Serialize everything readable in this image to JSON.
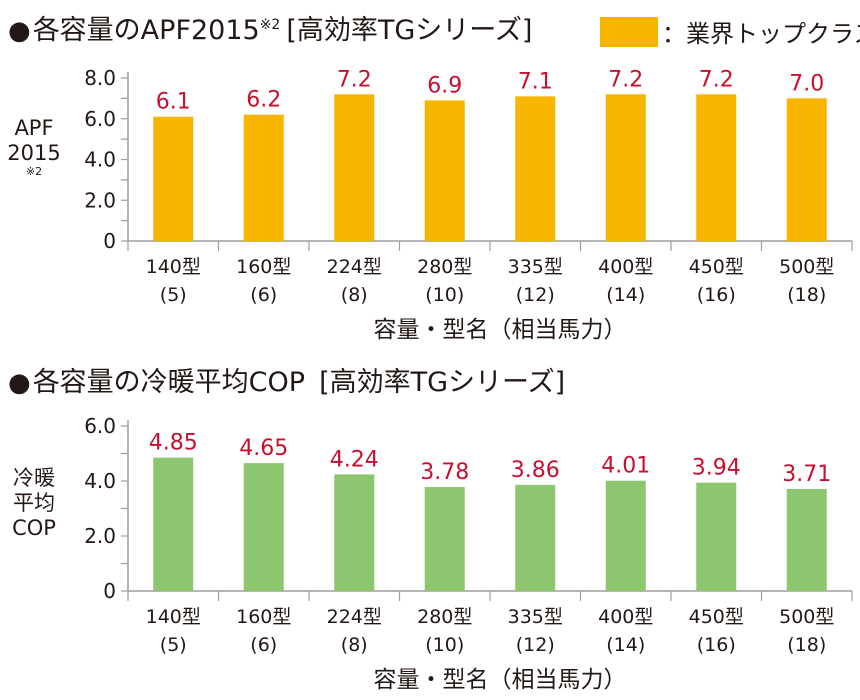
{
  "chart_data": [
    {
      "type": "bar",
      "title": "各容量のAPF2015",
      "title_note": "※2",
      "title_suffix": "[高効率TGシリーズ]",
      "legend": "：業界トップクラス",
      "ylabel_lines": [
        "APF",
        "2015"
      ],
      "ylabel_note": "※2",
      "xlabel": "容量・型名（相当馬力）",
      "categories": [
        "140型",
        "160型",
        "224型",
        "280型",
        "335型",
        "400型",
        "450型",
        "500型"
      ],
      "category_sublabels": [
        "(5)",
        "(6)",
        "(8)",
        "(10)",
        "(12)",
        "(14)",
        "(16)",
        "(18)"
      ],
      "values": [
        6.1,
        6.2,
        7.2,
        6.9,
        7.1,
        7.2,
        7.2,
        7.0
      ],
      "value_labels": [
        "6.1",
        "6.2",
        "7.2",
        "6.9",
        "7.1",
        "7.2",
        "7.2",
        "7.0"
      ],
      "ylim": [
        0,
        8
      ],
      "yticks": [
        0,
        2,
        4,
        6,
        8
      ],
      "ytick_labels": [
        "0",
        "2.0",
        "4.0",
        "6.0",
        "8.0"
      ],
      "bar_color": "#f7b500",
      "label_color": "#c8102e",
      "grid": false
    },
    {
      "type": "bar",
      "title": "各容量の冷暖平均COP",
      "title_note": "",
      "title_suffix": "[高効率TGシリーズ]",
      "ylabel_lines": [
        "冷暖",
        "平均",
        "COP"
      ],
      "xlabel": "容量・型名（相当馬力）",
      "categories": [
        "140型",
        "160型",
        "224型",
        "280型",
        "335型",
        "400型",
        "450型",
        "500型"
      ],
      "category_sublabels": [
        "(5)",
        "(6)",
        "(8)",
        "(10)",
        "(12)",
        "(14)",
        "(16)",
        "(18)"
      ],
      "values": [
        4.85,
        4.65,
        4.24,
        3.78,
        3.86,
        4.01,
        3.94,
        3.71
      ],
      "value_labels": [
        "4.85",
        "4.65",
        "4.24",
        "3.78",
        "3.86",
        "4.01",
        "3.94",
        "3.71"
      ],
      "ylim": [
        0,
        6
      ],
      "yticks": [
        0,
        2,
        4,
        6
      ],
      "ytick_labels": [
        "0",
        "2.0",
        "4.0",
        "6.0"
      ],
      "bar_color": "#8cc66e",
      "label_color": "#c8102e",
      "grid": false
    }
  ]
}
